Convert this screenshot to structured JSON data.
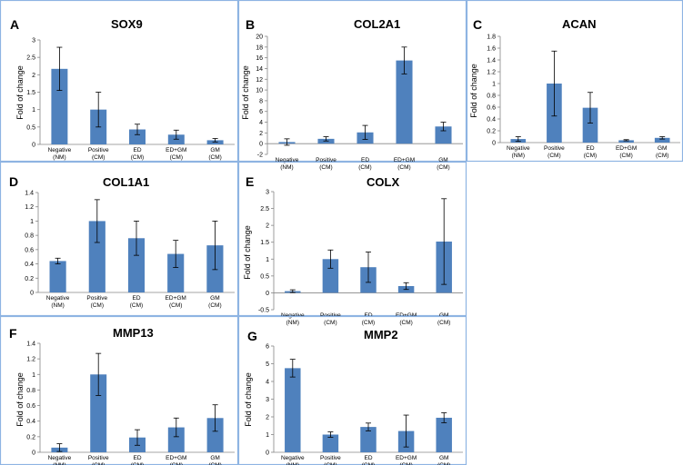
{
  "chart_data": [
    {
      "id": "A",
      "type": "bar",
      "title": "SOX9",
      "ylabel": "Fold of change",
      "categories": [
        "Negative (NM)",
        "Positive (CM)",
        "ED (CM)",
        "ED+GM (CM)",
        "GM (CM)"
      ],
      "cat_line1": [
        "Negative",
        "Positive",
        "ED",
        "ED+GM",
        "GM"
      ],
      "cat_line2": [
        "(NM)",
        "(CM)",
        "(CM)",
        "(CM)",
        "(CM)"
      ],
      "values": [
        2.17,
        1.0,
        0.43,
        0.28,
        0.12
      ],
      "errors": [
        0.62,
        0.5,
        0.15,
        0.13,
        0.05
      ],
      "ylim": [
        0,
        3
      ],
      "ticks": [
        0,
        0.5,
        1,
        1.5,
        2,
        2.5,
        3
      ],
      "tick_labels": [
        "0",
        "0.5",
        "1",
        "1.5",
        "2",
        "2.5",
        "3"
      ],
      "color": "#4f81bd",
      "grid": false
    },
    {
      "id": "B",
      "type": "bar",
      "title": "COL2A1",
      "ylabel": "Fold of change",
      "categories": [
        "Negative (NM)",
        "Positive (CM)",
        "ED (CM)",
        "ED+GM (CM)",
        "GM (CM)"
      ],
      "cat_line1": [
        "Negative",
        "Positive",
        "ED",
        "ED+GM",
        "GM"
      ],
      "cat_line2": [
        "(NM)",
        "(CM)",
        "(CM)",
        "(CM)",
        "(CM)"
      ],
      "values": [
        0.3,
        0.9,
        2.1,
        15.5,
        3.2
      ],
      "errors": [
        0.6,
        0.4,
        1.3,
        2.5,
        0.8
      ],
      "ylim": [
        -2,
        20
      ],
      "ticks": [
        -2,
        0,
        2,
        4,
        6,
        8,
        10,
        12,
        14,
        16,
        18,
        20
      ],
      "tick_labels": [
        "-2",
        "0",
        "2",
        "4",
        "6",
        "8",
        "10",
        "12",
        "14",
        "16",
        "18",
        "20"
      ],
      "color": "#4f81bd",
      "grid": false
    },
    {
      "id": "C",
      "type": "bar",
      "title": "ACAN",
      "ylabel": "Fold of change",
      "categories": [
        "Negative (NM)",
        "Positive (CM)",
        "ED (CM)",
        "ED+GM (CM)",
        "GM (CM)"
      ],
      "cat_line1": [
        "Negative",
        "Positive",
        "ED",
        "ED+GM",
        "GM"
      ],
      "cat_line2": [
        "(NM)",
        "(CM)",
        "(CM)",
        "(CM)",
        "(CM)"
      ],
      "values": [
        0.06,
        1.0,
        0.59,
        0.04,
        0.08
      ],
      "errors": [
        0.04,
        0.55,
        0.26,
        0.01,
        0.02
      ],
      "ylim": [
        0,
        1.8
      ],
      "ticks": [
        0,
        0.2,
        0.4,
        0.6,
        0.8,
        1,
        1.2,
        1.4,
        1.6,
        1.8
      ],
      "tick_labels": [
        "0",
        "0.2",
        "0.4",
        "0.6",
        "0.8",
        "1",
        "1.2",
        "1.4",
        "1.6",
        "1.8"
      ],
      "color": "#4f81bd",
      "grid": false
    },
    {
      "id": "D",
      "type": "bar",
      "title": "COL1A1",
      "ylabel": "",
      "categories": [
        "Negative (NM)",
        "Positive (CM)",
        "ED (CM)",
        "ED+GM (CM)",
        "GM (CM)"
      ],
      "cat_line1": [
        "Negative",
        "Positive",
        "ED",
        "ED+GM",
        "GM"
      ],
      "cat_line2": [
        "(NM)",
        "(CM)",
        "(CM)",
        "(CM)",
        "(CM)"
      ],
      "values": [
        0.44,
        1.0,
        0.76,
        0.54,
        0.66
      ],
      "errors": [
        0.04,
        0.3,
        0.24,
        0.19,
        0.34
      ],
      "ylim": [
        0,
        1.4
      ],
      "ticks": [
        0,
        0.2,
        0.4,
        0.6,
        0.8,
        1,
        1.2,
        1.4
      ],
      "tick_labels": [
        "0",
        "0.2",
        "0.4",
        "0.6",
        "0.8",
        "1",
        "1.2",
        "1.4"
      ],
      "color": "#4f81bd",
      "grid": false
    },
    {
      "id": "E",
      "type": "bar",
      "title": "COLX",
      "ylabel": "Fold of change",
      "categories": [
        "Negative (NM)",
        "Positive (CM)",
        "ED (CM)",
        "ED+GM (CM)",
        "GM (CM)"
      ],
      "cat_line1": [
        "Negative",
        "Positive",
        "ED",
        "ED+GM",
        "GM"
      ],
      "cat_line2": [
        "(NM)",
        "(CM)",
        "(CM)",
        "(CM)",
        "(CM)"
      ],
      "values": [
        0.05,
        1.0,
        0.76,
        0.2,
        1.52
      ],
      "errors": [
        0.04,
        0.27,
        0.45,
        0.1,
        1.27
      ],
      "ylim": [
        -0.5,
        3
      ],
      "ticks": [
        -0.5,
        0,
        0.5,
        1,
        1.5,
        2,
        2.5,
        3
      ],
      "tick_labels": [
        "-0.5",
        "0",
        "0.5",
        "1",
        "1.5",
        "2",
        "2.5",
        "3"
      ],
      "color": "#4f81bd",
      "grid": false
    },
    {
      "id": "F",
      "type": "bar",
      "title": "MMP13",
      "ylabel": "Fold of change",
      "categories": [
        "Negative (NM)",
        "Positive (CM)",
        "ED (CM)",
        "ED+GM (CM)",
        "GM (CM)"
      ],
      "cat_line1": [
        "Negative",
        "Positive",
        "ED",
        "ED+GM",
        "GM"
      ],
      "cat_line2": [
        "(NM)",
        "(CM)",
        "(CM)",
        "(CM)",
        "(CM)"
      ],
      "values": [
        0.06,
        1.0,
        0.19,
        0.32,
        0.44
      ],
      "errors": [
        0.05,
        0.27,
        0.1,
        0.12,
        0.17
      ],
      "ylim": [
        0,
        1.4
      ],
      "ticks": [
        0,
        0.2,
        0.4,
        0.6,
        0.8,
        1,
        1.2,
        1.4
      ],
      "tick_labels": [
        "0",
        "0.2",
        "0.4",
        "0.6",
        "0.8",
        "1",
        "1.2",
        "1.4"
      ],
      "color": "#4f81bd",
      "grid": false
    },
    {
      "id": "G",
      "type": "bar",
      "title": "MMP2",
      "ylabel": "Fold of change",
      "categories": [
        "Negative (NM)",
        "Positive (CM)",
        "ED (CM)",
        "ED+GM (CM)",
        "GM (CM)"
      ],
      "cat_line1": [
        "Negative",
        "Positive",
        "ED",
        "ED+GM",
        "GM"
      ],
      "cat_line2": [
        "(NM)",
        "(CM)",
        "(CM)",
        "(CM)",
        "(CM)"
      ],
      "values": [
        4.75,
        1.0,
        1.43,
        1.2,
        1.95
      ],
      "errors": [
        0.5,
        0.15,
        0.22,
        0.9,
        0.28
      ],
      "ylim": [
        0,
        6
      ],
      "ticks": [
        0,
        1,
        2,
        3,
        4,
        5,
        6
      ],
      "tick_labels": [
        "0",
        "1",
        "2",
        "3",
        "4",
        "5",
        "6"
      ],
      "color": "#4f81bd",
      "grid": false
    }
  ]
}
